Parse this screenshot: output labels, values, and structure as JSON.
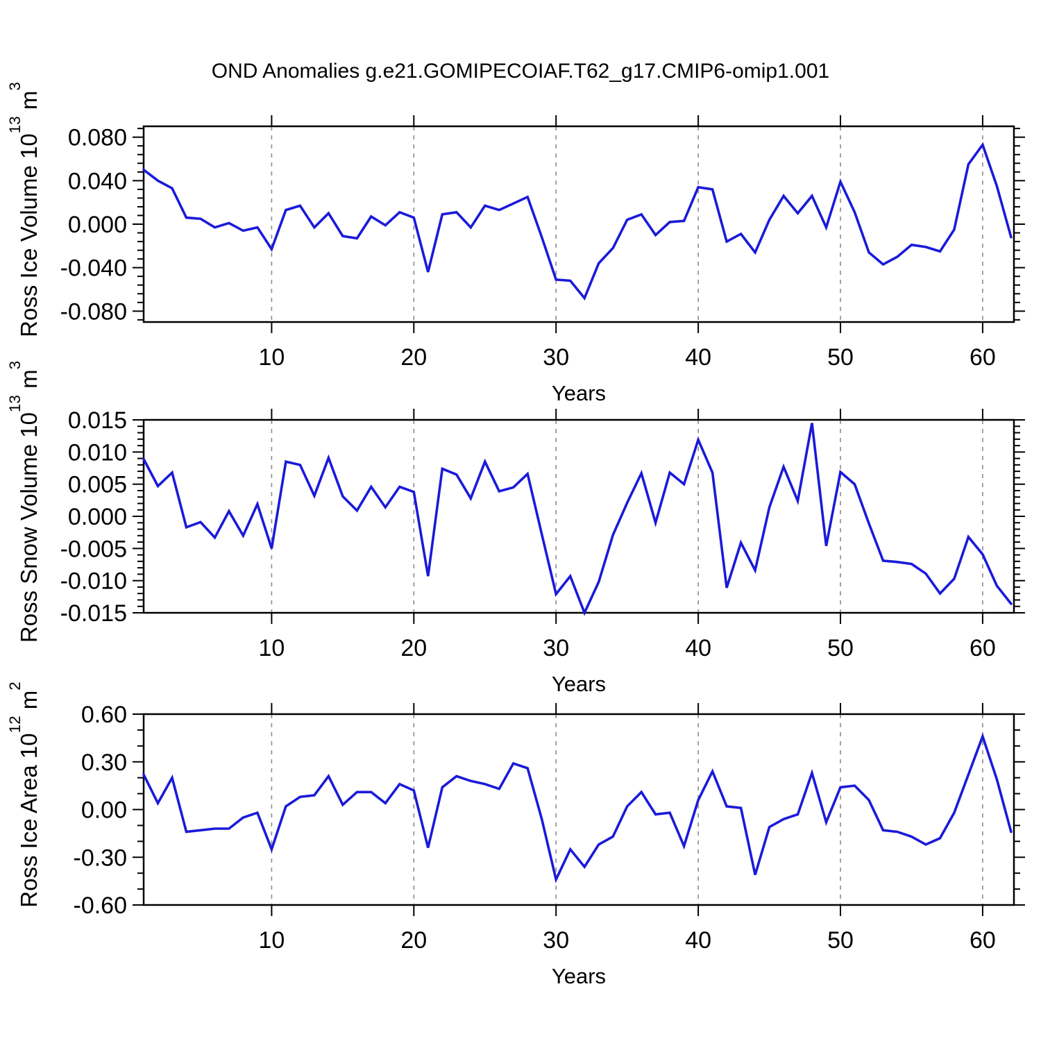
{
  "title": "OND Anomalies g.e21.GOMIPECOIAF.T62_g17.CMIP6-omip1.001",
  "colors": {
    "line": "#1a1ad9",
    "grid": "#8c8c8c",
    "axis": "#000000"
  },
  "chart_data": [
    {
      "type": "line",
      "name": "ross-ice-volume",
      "ylabel": {
        "text": "Ross Ice Volume 10",
        "exp": "13",
        "unit": " m",
        "unit_exp": "3"
      },
      "xlabel": "Years",
      "xlim": [
        1,
        62.2
      ],
      "xticks": [
        10,
        20,
        30,
        40,
        50,
        60
      ],
      "xtick_labels": [
        "10",
        "20",
        "30",
        "40",
        "50",
        "60"
      ],
      "xminor_step": 2,
      "ylim": [
        -0.09,
        0.09
      ],
      "yticks": [
        0.08,
        0.04,
        0.0,
        -0.04,
        -0.08
      ],
      "ytick_labels": [
        "0.080",
        "0.040",
        "0.000",
        "-0.040",
        "-0.080"
      ],
      "yminor_step": 0.008,
      "grid": "vertical dashed lines at major x ticks",
      "x_start_year": 1,
      "values": [
        0.05,
        0.04,
        0.033,
        0.006,
        0.005,
        -0.003,
        0.001,
        -0.006,
        -0.003,
        -0.023,
        0.013,
        0.017,
        -0.003,
        0.01,
        -0.011,
        -0.013,
        0.007,
        -0.001,
        0.011,
        0.006,
        -0.044,
        0.009,
        0.011,
        -0.003,
        0.017,
        0.013,
        0.019,
        0.025,
        -0.012,
        -0.051,
        -0.052,
        -0.068,
        -0.036,
        -0.022,
        0.004,
        0.009,
        -0.01,
        0.002,
        0.003,
        0.034,
        0.032,
        -0.016,
        -0.009,
        -0.026,
        0.004,
        0.026,
        0.01,
        0.026,
        -0.003,
        0.039,
        0.011,
        -0.026,
        -0.037,
        -0.03,
        -0.019,
        -0.021,
        -0.025,
        -0.005,
        0.055,
        0.073,
        0.035,
        -0.012
      ]
    },
    {
      "type": "line",
      "name": "ross-snow-volume",
      "ylabel": {
        "text": "Ross Snow Volume 10",
        "exp": "13",
        "unit": " m",
        "unit_exp": "3"
      },
      "xlabel": "Years",
      "xlim": [
        1,
        62.2
      ],
      "xticks": [
        10,
        20,
        30,
        40,
        50,
        60
      ],
      "xtick_labels": [
        "10",
        "20",
        "30",
        "40",
        "50",
        "60"
      ],
      "xminor_step": 2,
      "ylim": [
        -0.015,
        0.015
      ],
      "yticks": [
        0.015,
        0.01,
        0.005,
        0.0,
        -0.005,
        -0.01,
        -0.015
      ],
      "ytick_labels": [
        "0.015",
        "0.010",
        "0.005",
        "0.000",
        "-0.005",
        "-0.010",
        "-0.015"
      ],
      "yminor_step": 0.001,
      "grid": "vertical dashed lines at major x ticks",
      "x_start_year": 1,
      "values": [
        0.0089,
        0.0047,
        0.0068,
        -0.0017,
        -0.0009,
        -0.0033,
        0.0008,
        -0.003,
        0.0019,
        -0.005,
        0.0085,
        0.008,
        0.0032,
        0.0091,
        0.0031,
        0.0009,
        0.0046,
        0.0014,
        0.0046,
        0.0038,
        -0.0093,
        0.0074,
        0.0065,
        0.0028,
        0.0085,
        0.0039,
        0.0045,
        0.0066,
        -0.0028,
        -0.0121,
        -0.0093,
        -0.015,
        -0.0102,
        -0.0029,
        0.0021,
        0.0067,
        -0.001,
        0.0068,
        0.005,
        0.0119,
        0.0068,
        -0.0111,
        -0.0041,
        -0.0084,
        0.0014,
        0.0077,
        0.0024,
        0.0145,
        -0.0046,
        0.0069,
        0.005,
        -0.0011,
        -0.0069,
        -0.0071,
        -0.0074,
        -0.0089,
        -0.012,
        -0.0097,
        -0.0032,
        -0.0059,
        -0.0108,
        -0.0136
      ]
    },
    {
      "type": "line",
      "name": "ross-ice-area",
      "ylabel": {
        "text": "Ross Ice Area 10",
        "exp": "12",
        "unit": " m",
        "unit_exp": "2"
      },
      "xlabel": "Years",
      "xlim": [
        1,
        62.2
      ],
      "xticks": [
        10,
        20,
        30,
        40,
        50,
        60
      ],
      "xtick_labels": [
        "10",
        "20",
        "30",
        "40",
        "50",
        "60"
      ],
      "xminor_step": 2,
      "ylim": [
        -0.6,
        0.6
      ],
      "yticks": [
        0.6,
        0.3,
        0.0,
        -0.3,
        -0.6
      ],
      "ytick_labels": [
        "0.60",
        "0.30",
        "0.00",
        "-0.30",
        "-0.60"
      ],
      "yminor_step": 0.1,
      "grid": "vertical dashed lines at major x ticks",
      "x_start_year": 1,
      "values": [
        0.22,
        0.04,
        0.2,
        -0.14,
        -0.13,
        -0.12,
        -0.12,
        -0.05,
        -0.02,
        -0.25,
        0.02,
        0.08,
        0.09,
        0.21,
        0.03,
        0.11,
        0.11,
        0.04,
        0.16,
        0.12,
        -0.24,
        0.14,
        0.21,
        0.18,
        0.16,
        0.13,
        0.29,
        0.26,
        -0.06,
        -0.44,
        -0.25,
        -0.36,
        -0.22,
        -0.17,
        0.02,
        0.11,
        -0.03,
        -0.02,
        -0.23,
        0.06,
        0.24,
        0.02,
        0.01,
        -0.41,
        -0.11,
        -0.06,
        -0.03,
        0.23,
        -0.08,
        0.14,
        0.15,
        0.06,
        -0.13,
        -0.14,
        -0.17,
        -0.22,
        -0.18,
        -0.02,
        0.22,
        0.46,
        0.19,
        -0.14
      ]
    }
  ]
}
